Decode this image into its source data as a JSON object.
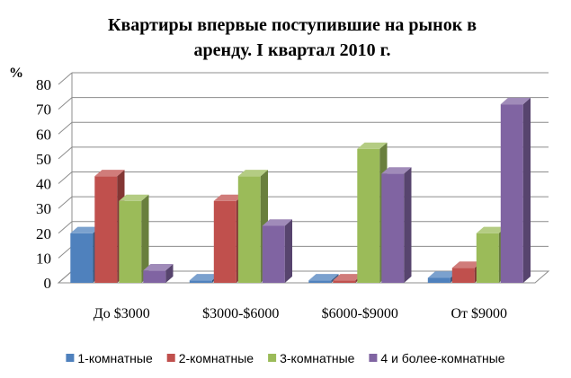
{
  "chart_data": {
    "type": "bar",
    "title_lines": [
      "Квартиры впервые поступившие на рынок в",
      "аренду.   I квартал 2010 г."
    ],
    "unit_label": "%",
    "categories": [
      "До $3000",
      "$3000-$6000",
      "$6000-$9000",
      "От $9000"
    ],
    "series": [
      {
        "name": "1-комнатные",
        "color": "#4F81BD",
        "values": [
          20,
          1,
          1,
          2
        ]
      },
      {
        "name": "2-комнатные",
        "color": "#C0504D",
        "values": [
          43,
          33,
          1,
          6
        ]
      },
      {
        "name": "3-комнатные",
        "color": "#9BBB59",
        "values": [
          33,
          43,
          54,
          20
        ]
      },
      {
        "name": "4 и более-комнатные",
        "color": "#8064A2",
        "values": [
          5,
          23,
          44,
          72
        ]
      }
    ],
    "ylim": [
      0,
      80
    ],
    "yticks": [
      0,
      10,
      20,
      30,
      40,
      50,
      60,
      70,
      80
    ],
    "grid": true,
    "legend_position": "bottom",
    "style": "3d-clustered-column"
  }
}
